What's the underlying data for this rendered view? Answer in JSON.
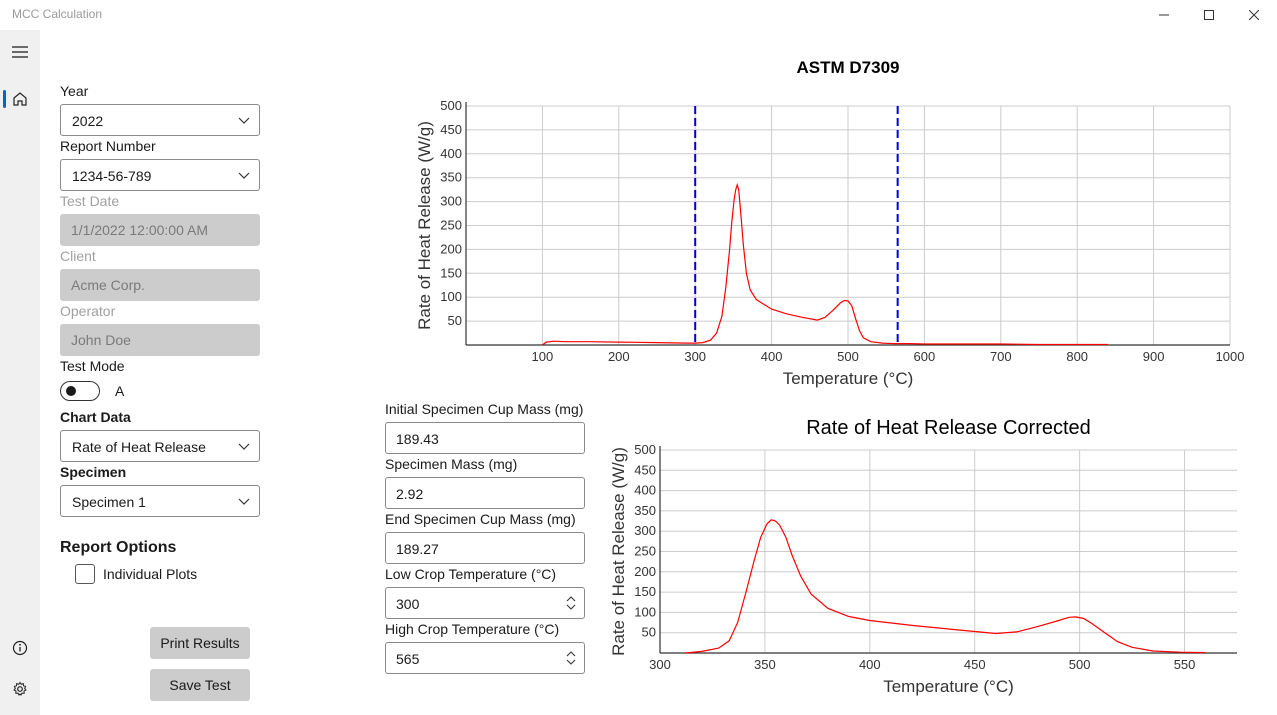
{
  "window": {
    "title": "MCC Calculation"
  },
  "nav": {
    "icons": [
      "menu-icon",
      "home-icon",
      "info-icon",
      "settings-icon"
    ],
    "accent": "#0a64c8"
  },
  "form": {
    "year": {
      "label": "Year",
      "value": "2022"
    },
    "report_number": {
      "label": "Report Number",
      "value": "1234-56-789"
    },
    "test_date": {
      "label": "Test Date",
      "value": "1/1/2022 12:00:00 AM"
    },
    "client": {
      "label": "Client",
      "value": "Acme Corp."
    },
    "operator": {
      "label": "Operator",
      "value": "John Doe"
    },
    "test_mode": {
      "label": "Test Mode",
      "value": "A"
    },
    "chart_data_select": {
      "label": "Chart Data",
      "value": "Rate of Heat Release"
    },
    "specimen": {
      "label": "Specimen",
      "value": "Specimen 1"
    },
    "report_options": {
      "title": "Report Options",
      "individual_plots": "Individual Plots",
      "individual_plots_checked": false
    },
    "print_button": "Print Results",
    "save_button": "Save Test"
  },
  "inputs": {
    "initial_cup_mass": {
      "label": "Initial Specimen Cup Mass (mg)",
      "value": "189.43"
    },
    "specimen_mass": {
      "label": "Specimen Mass (mg)",
      "value": "2.92"
    },
    "end_cup_mass": {
      "label": "End Specimen Cup Mass (mg)",
      "value": "189.27"
    },
    "low_crop": {
      "label": "Low Crop Temperature (°C)",
      "value": "300"
    },
    "high_crop": {
      "label": "High Crop Temperature (°C)",
      "value": "565"
    }
  },
  "chart_data": [
    {
      "type": "line",
      "title": "ASTM D7309",
      "xlabel": "Temperature (°C)",
      "ylabel": "Rate of Heat Release (W/g)",
      "xlim": [
        0,
        1000
      ],
      "ylim": [
        0,
        500
      ],
      "xticks": [
        100,
        200,
        300,
        400,
        500,
        600,
        700,
        800,
        900,
        1000
      ],
      "yticks": [
        50,
        100,
        150,
        200,
        250,
        300,
        350,
        400,
        450,
        500
      ],
      "grid": true,
      "line_color": "#ff0000",
      "markers": [
        {
          "x": 300,
          "color": "#0000cc"
        },
        {
          "x": 565,
          "color": "#0000cc"
        }
      ],
      "series": [
        {
          "x": [
            100,
            105,
            115,
            130,
            160,
            200,
            250,
            290,
            300,
            310,
            320,
            328,
            335,
            340,
            345,
            348,
            351,
            353,
            355,
            357,
            360,
            363,
            367,
            372,
            380,
            390,
            400,
            420,
            440,
            460,
            470,
            480,
            490,
            495,
            500,
            505,
            510,
            515,
            520,
            530,
            545,
            560,
            565,
            580,
            600,
            650,
            700,
            750,
            800,
            840
          ],
          "y": [
            0,
            6,
            8,
            7,
            7,
            6,
            5,
            4,
            4,
            5,
            10,
            25,
            60,
            120,
            200,
            260,
            305,
            325,
            335,
            325,
            270,
            210,
            150,
            115,
            95,
            85,
            75,
            65,
            58,
            52,
            58,
            72,
            88,
            93,
            92,
            82,
            55,
            30,
            15,
            7,
            4,
            3,
            3,
            3,
            2,
            2,
            2,
            1,
            1,
            1
          ]
        }
      ]
    },
    {
      "type": "line",
      "title": "Rate of Heat Release Corrected",
      "xlabel": "Temperature (°C)",
      "ylabel": "Rate of Heat Release (W/g)",
      "xlim": [
        300,
        575
      ],
      "ylim": [
        0,
        500
      ],
      "xticks": [
        300,
        350,
        400,
        450,
        500,
        550
      ],
      "yticks": [
        50,
        100,
        150,
        200,
        250,
        300,
        350,
        400,
        450,
        500
      ],
      "grid": true,
      "line_color": "#ff0000",
      "series": [
        {
          "x": [
            312,
            320,
            328,
            333,
            337,
            341,
            345,
            348,
            351,
            353,
            355,
            357,
            360,
            363,
            367,
            372,
            380,
            390,
            400,
            420,
            440,
            460,
            470,
            480,
            490,
            495,
            498,
            502,
            506,
            512,
            518,
            525,
            535,
            548,
            560
          ],
          "y": [
            0,
            4,
            12,
            30,
            75,
            150,
            230,
            285,
            318,
            328,
            325,
            315,
            285,
            240,
            190,
            145,
            110,
            90,
            80,
            68,
            58,
            48,
            52,
            65,
            80,
            88,
            89,
            85,
            72,
            50,
            28,
            14,
            5,
            2,
            1
          ]
        }
      ]
    }
  ]
}
